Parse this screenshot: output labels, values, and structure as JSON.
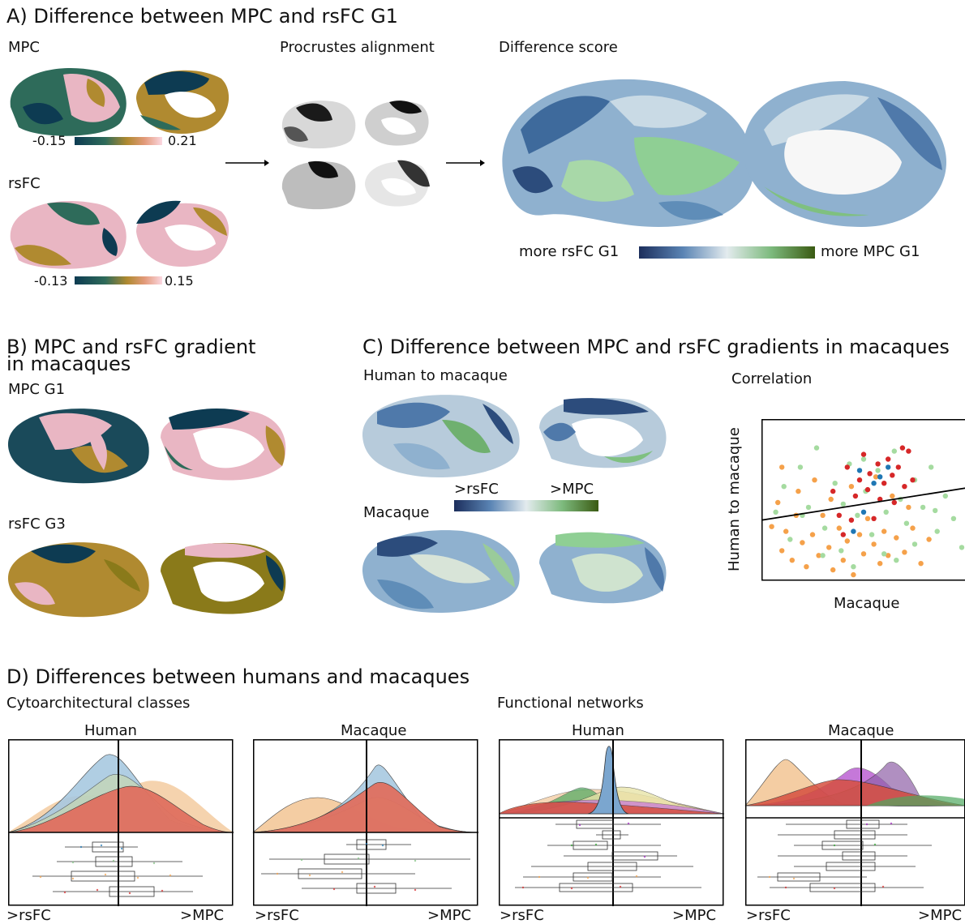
{
  "panelA": {
    "title": "A) Difference between MPC and rsFC G1",
    "mpc_label": "MPC",
    "mpc_min": "-0.15",
    "mpc_max": "0.21",
    "rsfc_label": "rsFC",
    "rsfc_min": "-0.13",
    "rsfc_max": "0.15",
    "procrustes_label": "Procrustes alignment",
    "difference_label": "Difference score",
    "diff_left": "more rsFC G1",
    "diff_right": "more MPC G1"
  },
  "panelB": {
    "title_line1": "B) MPC and rsFC gradient",
    "title_line2": "in macaques",
    "mpc_label": "MPC G1",
    "rsfc_label": "rsFC G3"
  },
  "panelC": {
    "title": "C) Difference between MPC and rsFC gradients in macaques",
    "human_to_macaque": "Human to macaque",
    "macaque": "Macaque",
    "cbar_left": ">rsFC",
    "cbar_right": ">MPC",
    "correlation_title": "Correlation",
    "ylabel": "Human to macaque",
    "xlabel": "Macaque"
  },
  "panelD": {
    "title": "D) Differences between humans and macaques",
    "cyto_label": "Cytoarchitectural classes",
    "func_label": "Functional networks",
    "human": "Human",
    "macaque": "Macaque",
    "left_tick": ">rsFC",
    "right_tick": ">MPC"
  },
  "colors": {
    "diverge_low": "#1e3a6e",
    "diverge_mid": "#dfe6ea",
    "diverge_high": "#3d5a14",
    "batlow_low": "#0d4a5c",
    "batlow_mid": "#b08a30",
    "batlow_high": "#f4c3d1"
  },
  "chart_data": {
    "type": "scatter",
    "xlabel": "Macaque",
    "ylabel": "Human to macaque",
    "series": [
      {
        "color": "#f5a14a",
        "points": [
          [
            0.05,
            0.67
          ],
          [
            0.08,
            0.52
          ],
          [
            0.1,
            0.82
          ],
          [
            0.12,
            0.7
          ],
          [
            0.15,
            0.88
          ],
          [
            0.17,
            0.6
          ],
          [
            0.2,
            0.77
          ],
          [
            0.22,
            0.92
          ],
          [
            0.25,
            0.72
          ],
          [
            0.28,
            0.85
          ],
          [
            0.3,
            0.6
          ],
          [
            0.33,
            0.8
          ],
          [
            0.35,
            0.94
          ],
          [
            0.38,
            0.68
          ],
          [
            0.4,
            0.88
          ],
          [
            0.42,
            0.76
          ],
          [
            0.45,
            0.97
          ],
          [
            0.48,
            0.72
          ],
          [
            0.5,
            0.84
          ],
          [
            0.52,
            0.62
          ],
          [
            0.55,
            0.78
          ],
          [
            0.58,
            0.9
          ],
          [
            0.6,
            0.7
          ],
          [
            0.62,
            0.85
          ],
          [
            0.66,
            0.74
          ],
          [
            0.7,
            0.83
          ],
          [
            0.74,
            0.68
          ],
          [
            0.78,
            0.9
          ],
          [
            0.82,
            0.75
          ],
          [
            0.18,
            0.45
          ],
          [
            0.26,
            0.38
          ],
          [
            0.34,
            0.5
          ],
          [
            0.44,
            0.42
          ],
          [
            0.56,
            0.36
          ],
          [
            0.64,
            0.48
          ],
          [
            0.72,
            0.55
          ],
          [
            0.1,
            0.3
          ]
        ]
      },
      {
        "color": "#a5dba0",
        "points": [
          [
            0.07,
            0.58
          ],
          [
            0.11,
            0.42
          ],
          [
            0.14,
            0.75
          ],
          [
            0.19,
            0.3
          ],
          [
            0.23,
            0.55
          ],
          [
            0.27,
            0.18
          ],
          [
            0.31,
            0.68
          ],
          [
            0.36,
            0.4
          ],
          [
            0.39,
            0.82
          ],
          [
            0.43,
            0.28
          ],
          [
            0.47,
            0.6
          ],
          [
            0.51,
            0.45
          ],
          [
            0.54,
            0.72
          ],
          [
            0.57,
            0.32
          ],
          [
            0.61,
            0.58
          ],
          [
            0.65,
            0.2
          ],
          [
            0.68,
            0.5
          ],
          [
            0.71,
            0.65
          ],
          [
            0.75,
            0.38
          ],
          [
            0.79,
            0.55
          ],
          [
            0.83,
            0.3
          ],
          [
            0.86,
            0.7
          ],
          [
            0.9,
            0.48
          ],
          [
            0.94,
            0.62
          ],
          [
            0.3,
            0.85
          ],
          [
            0.45,
            0.92
          ],
          [
            0.6,
            0.84
          ],
          [
            0.75,
            0.78
          ],
          [
            0.2,
            0.6
          ],
          [
            0.5,
            0.25
          ],
          [
            0.4,
            0.53
          ],
          [
            0.66,
            0.88
          ],
          [
            0.85,
            0.57
          ],
          [
            0.98,
            0.8
          ]
        ]
      },
      {
        "color": "#d62728",
        "points": [
          [
            0.35,
            0.45
          ],
          [
            0.42,
            0.3
          ],
          [
            0.48,
            0.38
          ],
          [
            0.5,
            0.22
          ],
          [
            0.53,
            0.34
          ],
          [
            0.57,
            0.28
          ],
          [
            0.6,
            0.4
          ],
          [
            0.62,
            0.25
          ],
          [
            0.64,
            0.35
          ],
          [
            0.67,
            0.3
          ],
          [
            0.7,
            0.42
          ],
          [
            0.72,
            0.2
          ],
          [
            0.58,
            0.5
          ],
          [
            0.46,
            0.48
          ],
          [
            0.38,
            0.6
          ],
          [
            0.55,
            0.62
          ],
          [
            0.65,
            0.52
          ],
          [
            0.4,
            0.72
          ],
          [
            0.52,
            0.44
          ],
          [
            0.74,
            0.38
          ],
          [
            0.69,
            0.18
          ],
          [
            0.44,
            0.63
          ]
        ]
      },
      {
        "color": "#1f77b4",
        "points": [
          [
            0.48,
            0.32
          ],
          [
            0.55,
            0.4
          ],
          [
            0.5,
            0.58
          ],
          [
            0.45,
            0.7
          ],
          [
            0.62,
            0.3
          ],
          [
            0.58,
            0.36
          ]
        ]
      }
    ],
    "fit_line": [
      [
        0,
        0.63
      ],
      [
        1,
        0.43
      ]
    ]
  }
}
